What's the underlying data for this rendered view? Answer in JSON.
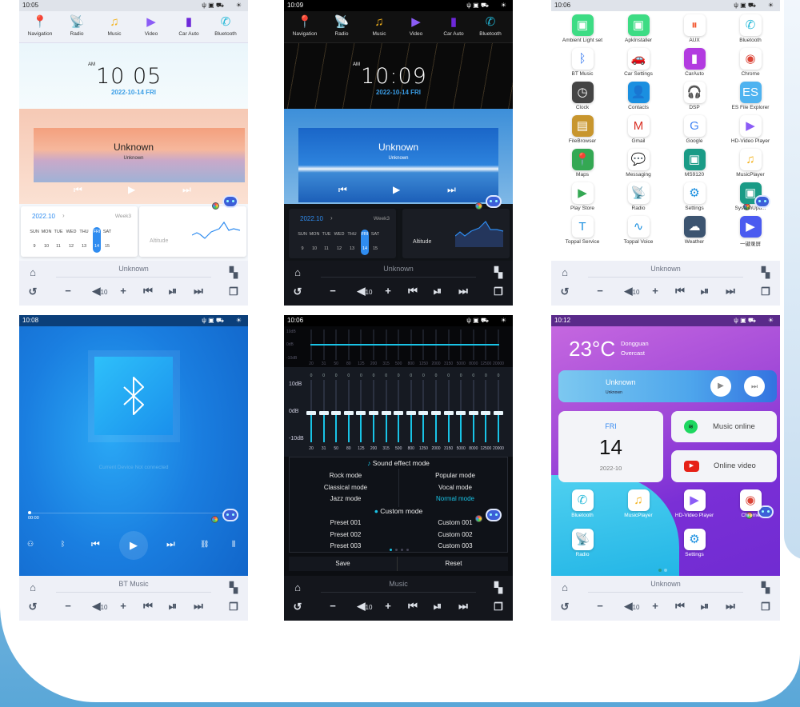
{
  "dock": [
    {
      "label": "Navigation",
      "icon": "navigation-pin-icon",
      "glyph": "📍",
      "color": "#e94a4a"
    },
    {
      "label": "Radio",
      "icon": "radio-antenna-icon",
      "glyph": "📡",
      "color": "#e6a020"
    },
    {
      "label": "Music",
      "icon": "music-note-icon",
      "glyph": "♫",
      "color": "#f3b21c"
    },
    {
      "label": "Video",
      "icon": "video-icon",
      "glyph": "▶",
      "color": "#8b5cf6"
    },
    {
      "label": "Car Auto",
      "icon": "car-auto-icon",
      "glyph": "▮",
      "color": "#6d28d9"
    },
    {
      "label": "Bluetooth",
      "icon": "bluetooth-phone-icon",
      "glyph": "✆",
      "color": "#22b8d8"
    }
  ],
  "control_bar": {
    "volume": "10",
    "icons": [
      "home-icon",
      "apps-grid-icon",
      "back-rotate-icon",
      "volume-down-icon",
      "volume-icon",
      "volume-up-icon",
      "previous-icon",
      "play-pause-icon",
      "next-icon",
      "multi-window-icon"
    ]
  },
  "colors": {
    "accent": "#2f8cf0",
    "eq_cyan": "#19c3e6",
    "purple": "#a347e0"
  },
  "screens": {
    "home_light": {
      "time": "10:05",
      "clock_am": "AM",
      "clock": "10 05",
      "date": "2022-10-14  FRI",
      "track_title": "Unknown",
      "track_artist": "Unknown",
      "cal_month": "2022.10",
      "cal_week": "Week3",
      "cal_days": [
        "SUN",
        "MON",
        "TUE",
        "WED",
        "THU",
        "FRI",
        "SAT"
      ],
      "cal_dates": [
        "9",
        "10",
        "11",
        "12",
        "13",
        "14",
        "15"
      ],
      "altitude_label": "Altitude",
      "bar_title": "Unknown"
    },
    "home_dark": {
      "time": "10:09",
      "clock_am": "AM",
      "clock": "10:09",
      "date": "2022-10-14  FRI",
      "track_title": "Unknown",
      "track_artist": "Unknown",
      "cal_month": "2022.10",
      "cal_week": "Week3",
      "cal_days": [
        "SUN",
        "MON",
        "TUE",
        "WED",
        "THU",
        "FRI",
        "SAT"
      ],
      "cal_dates": [
        "9",
        "10",
        "11",
        "12",
        "13",
        "14",
        "15"
      ],
      "altitude_label": "Altitude",
      "bar_title": "Unknown"
    },
    "app_drawer": {
      "time": "10:06",
      "bar_title": "Unknown",
      "apps": [
        {
          "label": "Ambient Light set",
          "icon": "android-icon",
          "bg": "#3ddc84",
          "glyph": "▣"
        },
        {
          "label": "ApkInstaller",
          "icon": "android-icon",
          "bg": "#3ddc84",
          "glyph": "▣"
        },
        {
          "label": "AUX",
          "icon": "aux-cable-icon",
          "bg": "#fff",
          "glyph": "⏸",
          "fg": "#f2542d"
        },
        {
          "label": "Bluetooth",
          "icon": "bluetooth-phone-icon",
          "bg": "#fff",
          "glyph": "✆",
          "fg": "#22b8d8"
        },
        {
          "label": "BT Music",
          "icon": "bluetooth-music-icon",
          "bg": "#fff",
          "glyph": "ᛒ",
          "fg": "#3a7bf0"
        },
        {
          "label": "Car Settings",
          "icon": "car-settings-icon",
          "bg": "#fff",
          "glyph": "🚗",
          "fg": "#6c8fd8"
        },
        {
          "label": "CarAuto",
          "icon": "car-auto-icon",
          "bg": "#b23be0",
          "glyph": "▮"
        },
        {
          "label": "Chrome",
          "icon": "chrome-icon",
          "bg": "#fff",
          "glyph": "◉",
          "fg": "#db4437"
        },
        {
          "label": "Clock",
          "icon": "clock-icon",
          "bg": "#444",
          "glyph": "◷"
        },
        {
          "label": "Contacts",
          "icon": "contacts-icon",
          "bg": "#1a8fe0",
          "glyph": "👤"
        },
        {
          "label": "DSP",
          "icon": "headphones-icon",
          "bg": "#fff",
          "glyph": "🎧",
          "fg": "#6a3de0"
        },
        {
          "label": "ES File Explorer",
          "icon": "es-file-icon",
          "bg": "#4fb3f0",
          "glyph": "ES"
        },
        {
          "label": "FileBrowser",
          "icon": "file-browser-icon",
          "bg": "#c8962e",
          "glyph": "▤"
        },
        {
          "label": "Gmail",
          "icon": "gmail-icon",
          "bg": "#fff",
          "glyph": "M",
          "fg": "#d93025"
        },
        {
          "label": "Google",
          "icon": "google-icon",
          "bg": "#fff",
          "glyph": "G",
          "fg": "#4285f4"
        },
        {
          "label": "HD-Video Player",
          "icon": "video-player-icon",
          "bg": "#fff",
          "glyph": "▶",
          "fg": "#8b5cf6"
        },
        {
          "label": "Maps",
          "icon": "maps-icon",
          "bg": "#34a853",
          "glyph": "📍"
        },
        {
          "label": "Messaging",
          "icon": "messaging-icon",
          "bg": "#fff",
          "glyph": "💬",
          "fg": "#1a8fe0"
        },
        {
          "label": "MS9120",
          "icon": "android-icon",
          "bg": "#1a9b86",
          "glyph": "▣"
        },
        {
          "label": "MusicPlayer",
          "icon": "music-note-icon",
          "bg": "#fff",
          "glyph": "♫",
          "fg": "#f3b21c"
        },
        {
          "label": "Play Store",
          "icon": "play-store-icon",
          "bg": "#fff",
          "glyph": "▶",
          "fg": "#34a853"
        },
        {
          "label": "Radio",
          "icon": "radio-antenna-icon",
          "bg": "#fff",
          "glyph": "📡",
          "fg": "#e6a020"
        },
        {
          "label": "Settings",
          "icon": "settings-gear-icon",
          "bg": "#fff",
          "glyph": "⚙",
          "fg": "#1a8fe0"
        },
        {
          "label": "SystemUpd...",
          "icon": "android-icon",
          "bg": "#1a9b86",
          "glyph": "▣"
        },
        {
          "label": "Toppal Service",
          "icon": "toppal-icon",
          "bg": "#fff",
          "glyph": "T",
          "fg": "#1a8fe0"
        },
        {
          "label": "Toppal Voice",
          "icon": "voice-wave-icon",
          "bg": "#fff",
          "glyph": "∿",
          "fg": "#1a8fe0"
        },
        {
          "label": "Weather",
          "icon": "weather-icon",
          "bg": "#3c5470",
          "glyph": "☁"
        },
        {
          "label": "一键录屏",
          "icon": "screen-record-icon",
          "bg": "#4a5af0",
          "glyph": "▶"
        }
      ]
    },
    "bt_music": {
      "time": "10:08",
      "status_text": "Current Device Not connected",
      "progress_time": "00:00",
      "progress": 0,
      "bar_title": "BT Music"
    },
    "equalizer": {
      "time": "10:06",
      "db_labels": [
        "10dB",
        "0dB",
        "-10dB"
      ],
      "frequencies": [
        "20",
        "31",
        "50",
        "80",
        "125",
        "200",
        "315",
        "500",
        "800",
        "1250",
        "2000",
        "3150",
        "5000",
        "8000",
        "12500",
        "20000"
      ],
      "gains": [
        0,
        0,
        0,
        0,
        0,
        0,
        0,
        0,
        0,
        0,
        0,
        0,
        0,
        0,
        0,
        0
      ],
      "sound_effect_title": "Sound effect mode",
      "modes": [
        [
          "Rock mode",
          "Popular mode"
        ],
        [
          "Classical mode",
          "Vocal mode"
        ],
        [
          "Jazz mode",
          "Normal mode"
        ]
      ],
      "selected_mode": "Normal mode",
      "custom_title": "Custom mode",
      "customs": [
        [
          "Preset 001",
          "Custom 001"
        ],
        [
          "Preset 002",
          "Custom 002"
        ],
        [
          "Preset 003",
          "Custom 003"
        ]
      ],
      "save": "Save",
      "reset": "Reset",
      "page_dots": 4,
      "active_dot": 0,
      "bar_title": "Music"
    },
    "launcher": {
      "time": "10:12",
      "temp": "23°C",
      "city": "Dongguan",
      "weather": "Overcast",
      "track_title": "Unknown",
      "track_artist": "Unknown",
      "day": "FRI",
      "date_num": "14",
      "month": "2022-10",
      "music_online": "Music online",
      "online_video": "Online video",
      "apps": [
        {
          "label": "Bluetooth",
          "icon": "bluetooth-phone-icon",
          "glyph": "✆",
          "fg": "#22b8d8"
        },
        {
          "label": "MusicPlayer",
          "icon": "music-note-icon",
          "glyph": "♫",
          "fg": "#f3b21c"
        },
        {
          "label": "HD-Video Player",
          "icon": "video-player-icon",
          "glyph": "▶",
          "fg": "#8b5cf6"
        },
        {
          "label": "Chrome",
          "icon": "chrome-icon",
          "glyph": "◉",
          "fg": "#db4437"
        },
        {
          "label": "Radio",
          "icon": "radio-antenna-icon",
          "glyph": "📡",
          "fg": "#e6a020"
        },
        {
          "label": "Settings",
          "icon": "settings-gear-icon",
          "glyph": "⚙",
          "fg": "#1a8fe0"
        }
      ],
      "bar_title": "Unknown"
    }
  }
}
